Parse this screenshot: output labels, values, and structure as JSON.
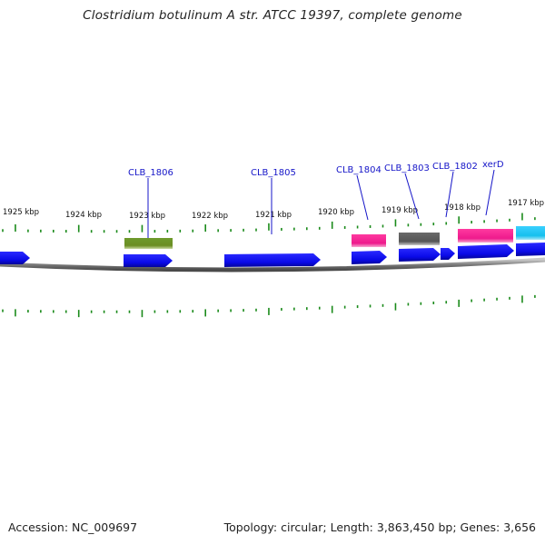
{
  "title": "Clostridium botulinum A str. ATCC 19397, complete genome",
  "footer": {
    "accession": "Accession: NC_009697",
    "summary": "Topology: circular; Length: 3,863,450 bp; Genes: 3,656"
  },
  "ruler": {
    "labels": [
      "1925 kbp",
      "1924 kbp",
      "1923 kbp",
      "1922 kbp",
      "1921 kbp",
      "1920 kbp",
      "1919 kbp",
      "1918 kbp",
      "1917 kbp"
    ]
  },
  "genes": [
    {
      "name": "CLB_1806"
    },
    {
      "name": "CLB_1805"
    },
    {
      "name": "CLB_1804"
    },
    {
      "name": "CLB_1803"
    },
    {
      "name": "CLB_1802"
    },
    {
      "name": "xerD"
    }
  ],
  "colors": {
    "gene": "#0a0af0",
    "gene_dark": "#0606a8",
    "tick": "#1a8a1a",
    "backbone": "#7a7a7a",
    "label": "#1515c8",
    "cog_green": "#6b8e23",
    "cog_pink": "#ee1a8c",
    "cog_gray": "#555555",
    "cog_cyan": "#15c0ee"
  }
}
